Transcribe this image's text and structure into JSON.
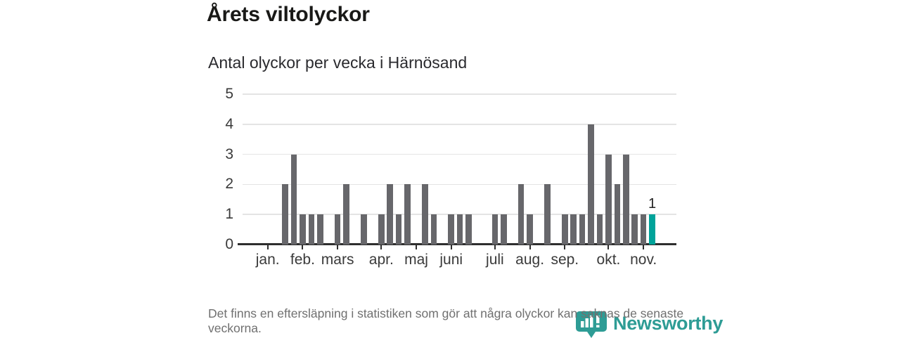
{
  "title": "Årets viltolyckor",
  "subtitle": "Antal olyckor per vecka i Härnösand",
  "footer": {
    "disclaimer": "Det finns en eftersläpning i statistiken som gör att några olyckor kan saknas de senaste veckorna.",
    "brand": "Newsworthy"
  },
  "colors": {
    "bar": "#67676b",
    "highlight": "#00a39a",
    "axis": "#2e2e2e",
    "grid": "#e4e4e4",
    "tick_label": "#3a3a3a",
    "brand": "#2e9c95",
    "footer_text": "#707070"
  },
  "chart_data": {
    "type": "bar",
    "title": "Årets viltolyckor",
    "subtitle": "Antal olyckor per vecka i Härnösand",
    "x_unit": "vecka",
    "weeks": [
      1,
      2,
      3,
      4,
      5,
      6,
      7,
      8,
      9,
      10,
      11,
      12,
      13,
      14,
      15,
      16,
      17,
      18,
      19,
      20,
      21,
      22,
      23,
      24,
      25,
      26,
      27,
      28,
      29,
      30,
      31,
      32,
      33,
      34,
      35,
      36,
      37,
      38,
      39,
      40,
      41,
      42,
      43,
      44,
      45
    ],
    "values": [
      0,
      0,
      2,
      3,
      1,
      1,
      1,
      0,
      1,
      2,
      0,
      1,
      0,
      1,
      2,
      1,
      2,
      0,
      2,
      1,
      0,
      1,
      1,
      1,
      0,
      0,
      1,
      1,
      0,
      2,
      1,
      0,
      2,
      0,
      1,
      1,
      1,
      4,
      1,
      3,
      2,
      3,
      1,
      1,
      1
    ],
    "highlight_last": true,
    "annotation": {
      "text": "1",
      "week": 45
    },
    "ylim": [
      0,
      5
    ],
    "yticks": [
      0,
      1,
      2,
      3,
      4,
      5
    ],
    "month_ticks": [
      {
        "label": "jan.",
        "week": 1
      },
      {
        "label": "feb.",
        "week": 5
      },
      {
        "label": "mars",
        "week": 9
      },
      {
        "label": "apr.",
        "week": 14
      },
      {
        "label": "maj",
        "week": 18
      },
      {
        "label": "juni",
        "week": 22
      },
      {
        "label": "juli",
        "week": 27
      },
      {
        "label": "aug.",
        "week": 31
      },
      {
        "label": "sep.",
        "week": 35
      },
      {
        "label": "okt.",
        "week": 40
      },
      {
        "label": "nov.",
        "week": 44
      }
    ],
    "grid": true,
    "legend": false
  }
}
